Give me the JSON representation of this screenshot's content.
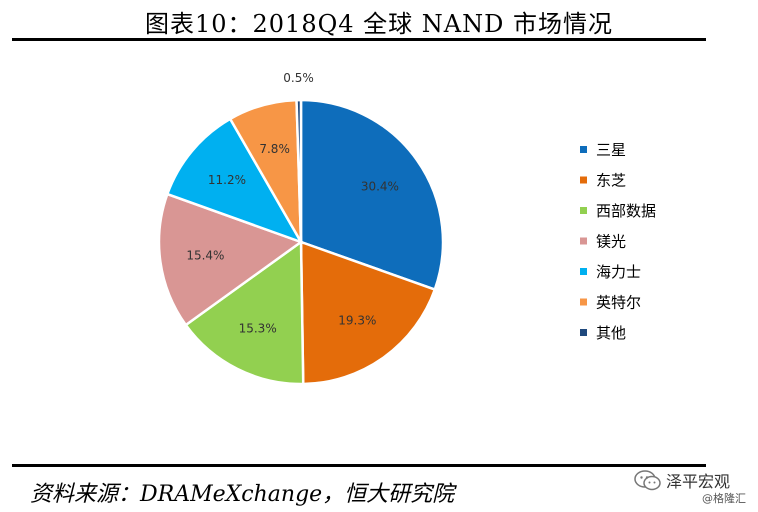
{
  "header": {
    "title": "图表10：2018Q4 全球 NAND 市场情况"
  },
  "footer": {
    "source": "资料来源：DRAMeXchange，恒大研究院"
  },
  "watermark": {
    "main": "泽平宏观",
    "sub": "@格隆汇"
  },
  "chart_data": {
    "type": "pie",
    "title": "",
    "categories": [
      "三星",
      "东芝",
      "西部数据",
      "镁光",
      "海力士",
      "英特尔",
      "其他"
    ],
    "values": [
      30.4,
      19.3,
      15.3,
      15.4,
      11.2,
      7.8,
      0.5
    ],
    "labels": [
      "30.4%",
      "19.3%",
      "15.3%",
      "15.4%",
      "11.2%",
      "7.8%",
      "0.5%"
    ],
    "colors": [
      "#0e6dbb",
      "#e46c0a",
      "#92d050",
      "#d99694",
      "#00b0f0",
      "#f79646",
      "#1f497d"
    ],
    "legend": "right"
  }
}
